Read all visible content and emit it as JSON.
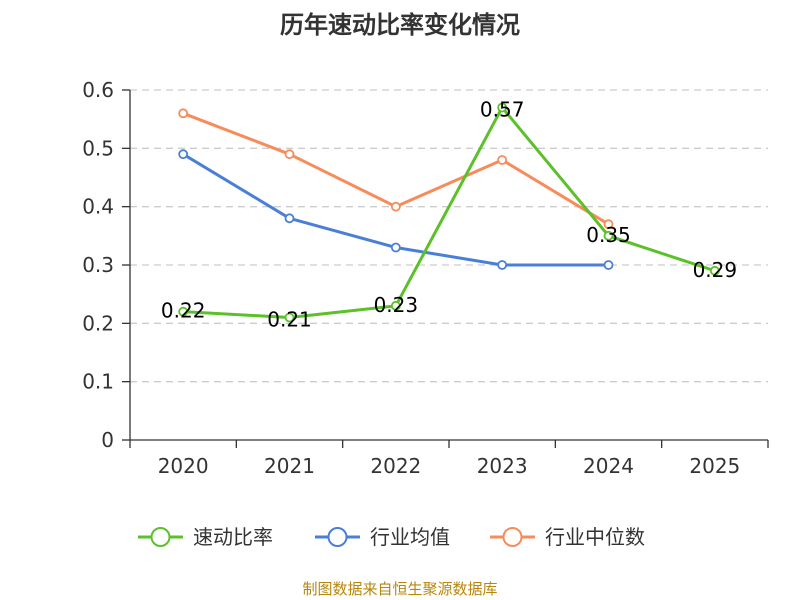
{
  "chart_data": {
    "type": "line",
    "title": "历年速动比率变化情况",
    "categories": [
      "2020",
      "2021",
      "2022",
      "2023",
      "2024",
      "2025"
    ],
    "ylim": [
      0,
      0.6
    ],
    "yticks": [
      "0",
      "0.1",
      "0.2",
      "0.3",
      "0.4",
      "0.5",
      "0.6"
    ],
    "grid": true,
    "legend_position": "bottom",
    "series": [
      {
        "name": "速动比率",
        "color": "#5cc02a",
        "values": [
          0.22,
          0.21,
          0.23,
          0.57,
          0.35,
          0.29
        ],
        "labels": [
          "0.22",
          "0.21",
          "0.23",
          "0.57",
          "0.35",
          "0.29"
        ]
      },
      {
        "name": "行业均值",
        "color": "#4a7fd8",
        "values": [
          0.49,
          0.38,
          0.33,
          0.3,
          0.3,
          null
        ]
      },
      {
        "name": "行业中位数",
        "color": "#f78c5a",
        "values": [
          0.56,
          0.49,
          0.4,
          0.48,
          0.37,
          null
        ]
      }
    ],
    "source": "制图数据来自恒生聚源数据库"
  }
}
